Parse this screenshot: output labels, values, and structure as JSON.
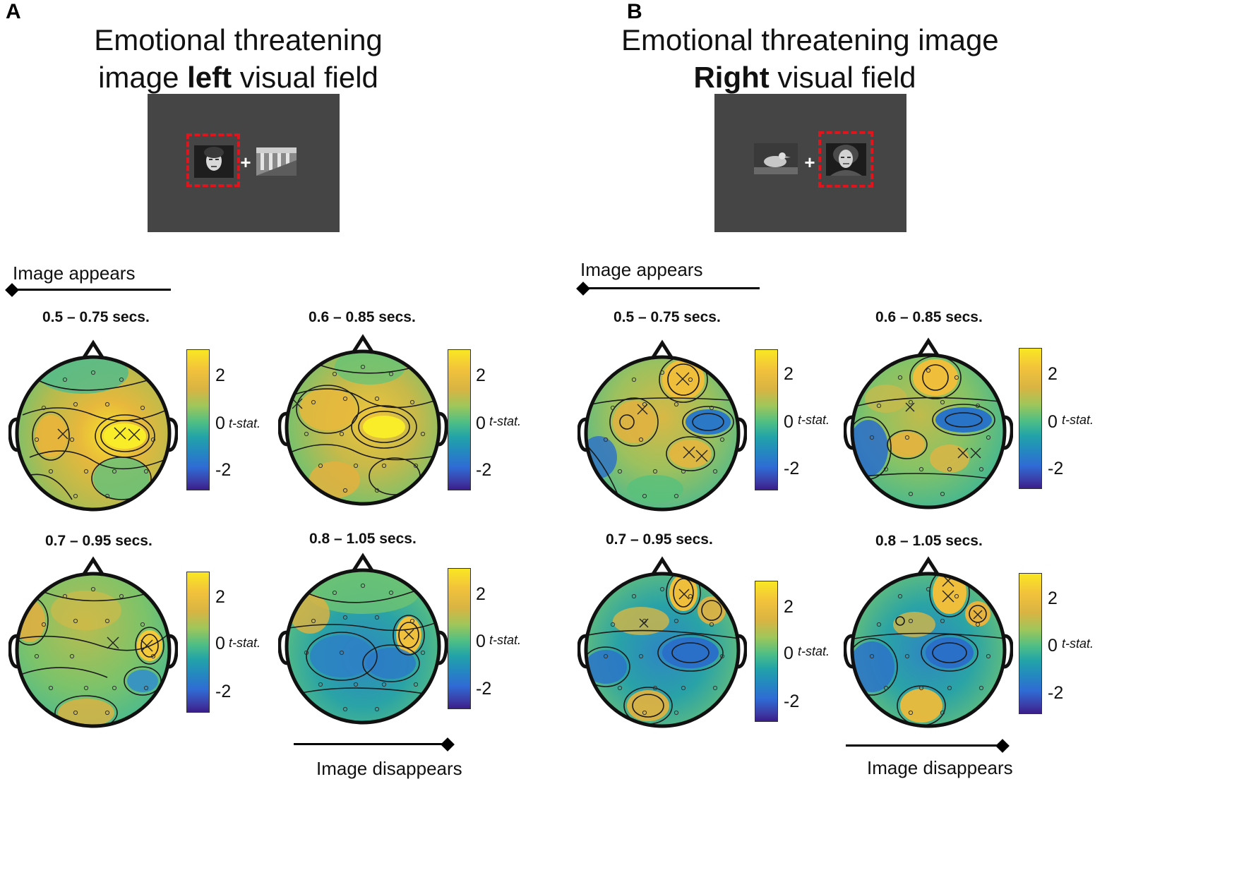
{
  "panels": [
    {
      "letter": "A",
      "title_line1": "Emotional threatening",
      "title_line2_pre": "image ",
      "title_line2_bold": "left",
      "title_line2_post": " visual field",
      "timeline_start_label": "Image appears",
      "timeline_end_label": "Image disappears",
      "topomaps": [
        {
          "label": "0.5 – 0.75 secs."
        },
        {
          "label": "0.6 – 0.85 secs."
        },
        {
          "label": "0.7 – 0.95 secs."
        },
        {
          "label": "0.8 – 1.05 secs."
        }
      ]
    },
    {
      "letter": "B",
      "title_line1": "Emotional threatening image",
      "title_line2_bold": "Right",
      "title_line2_post": " visual field",
      "timeline_start_label": "Image appears",
      "timeline_end_label": "Image disappears",
      "topomaps": [
        {
          "label": "0.5 – 0.75 secs."
        },
        {
          "label": "0.6 – 0.85 secs."
        },
        {
          "label": "0.7 – 0.95 secs."
        },
        {
          "label": "0.8 – 1.05 secs."
        }
      ]
    }
  ],
  "stimulus": {
    "fixation": "+"
  },
  "colorbar": {
    "ticks": [
      "2",
      "0",
      "-2"
    ],
    "unit_label": "t-stat.",
    "colormap": "parula",
    "colors": {
      "high": "#f9e722",
      "mid": "#23a4a7",
      "low": "#3a1e8a"
    }
  },
  "colors": {
    "stimulus_bg": "#454545",
    "highlight_box": "#e0141c"
  }
}
